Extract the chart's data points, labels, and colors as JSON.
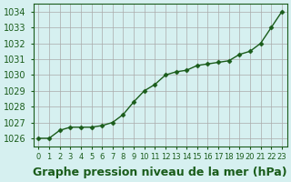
{
  "x": [
    0,
    1,
    2,
    3,
    4,
    5,
    6,
    7,
    8,
    9,
    10,
    11,
    12,
    13,
    14,
    15,
    16,
    17,
    18,
    19,
    20,
    21,
    22,
    23
  ],
  "y": [
    1026.0,
    1026.0,
    1026.5,
    1026.7,
    1026.7,
    1026.7,
    1026.8,
    1027.0,
    1027.5,
    1028.3,
    1029.0,
    1029.4,
    1030.0,
    1030.2,
    1030.3,
    1030.6,
    1030.7,
    1030.8,
    1030.9,
    1031.3,
    1031.5,
    1032.0,
    1033.0,
    1034.0
  ],
  "line_color": "#1a5c1a",
  "marker_color": "#1a5c1a",
  "bg_color": "#d6f0f0",
  "grid_color": "#aaaaaa",
  "xlabel": "Graphe pression niveau de la mer (hPa)",
  "xlabel_fontsize": 9,
  "ylabel_ticks": [
    1026,
    1027,
    1028,
    1029,
    1030,
    1031,
    1032,
    1033,
    1034
  ],
  "ylim": [
    1025.5,
    1034.5
  ],
  "xlim": [
    -0.5,
    23.5
  ],
  "tick_fontsize": 7
}
